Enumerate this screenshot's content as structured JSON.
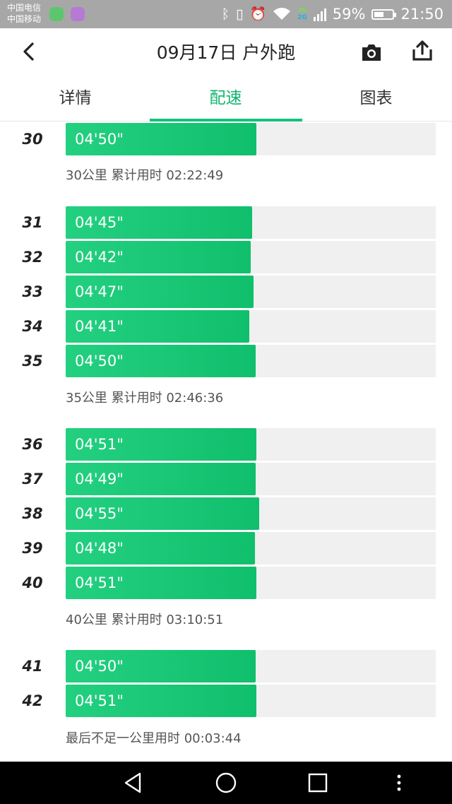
{
  "status_bar": {
    "carrier_1": "中国电信",
    "carrier_2": "中国移动",
    "network_1": "3G",
    "network_2": "2G",
    "battery_text": "59%",
    "battery_level": 0.59,
    "time": "21:50",
    "icons": [
      "bluetooth-icon",
      "vibrate-icon",
      "alarm-icon",
      "wifi-icon",
      "signal-icon",
      "battery-icon"
    ]
  },
  "header": {
    "title": "09月17日 户外跑",
    "icons": [
      "back-arrow-icon",
      "camera-icon",
      "share-icon"
    ]
  },
  "tabs": [
    {
      "label": "详情",
      "active": false
    },
    {
      "label": "配速",
      "active": true
    },
    {
      "label": "图表",
      "active": false
    }
  ],
  "colors": {
    "accent": "#12c27a",
    "bar_start": "#23d080",
    "bar_end": "#10bf6c",
    "track": "#f0f0f0"
  },
  "pace_rows": [
    {
      "km": "30",
      "pace": "04'50\"",
      "fill": 0.515
    },
    {
      "km": "31",
      "pace": "04'45\"",
      "fill": 0.503
    },
    {
      "km": "32",
      "pace": "04'42\"",
      "fill": 0.5
    },
    {
      "km": "33",
      "pace": "04'47\"",
      "fill": 0.508
    },
    {
      "km": "34",
      "pace": "04'41\"",
      "fill": 0.496
    },
    {
      "km": "35",
      "pace": "04'50\"",
      "fill": 0.513
    },
    {
      "km": "36",
      "pace": "04'51\"",
      "fill": 0.515
    },
    {
      "km": "37",
      "pace": "04'49\"",
      "fill": 0.513
    },
    {
      "km": "38",
      "pace": "04'55\"",
      "fill": 0.523
    },
    {
      "km": "39",
      "pace": "04'48\"",
      "fill": 0.511
    },
    {
      "km": "40",
      "pace": "04'51\"",
      "fill": 0.515
    },
    {
      "km": "41",
      "pace": "04'50\"",
      "fill": 0.513
    },
    {
      "km": "42",
      "pace": "04'51\"",
      "fill": 0.515
    }
  ],
  "summaries": [
    "30公里 累计用时 02:22:49",
    "35公里 累计用时 02:46:36",
    "40公里 累计用时 03:10:51",
    "最后不足一公里用时 00:03:44"
  ],
  "nav_bar": {
    "icons": [
      "nav-back-icon",
      "nav-home-icon",
      "nav-recents-icon",
      "nav-menu-icon"
    ]
  }
}
